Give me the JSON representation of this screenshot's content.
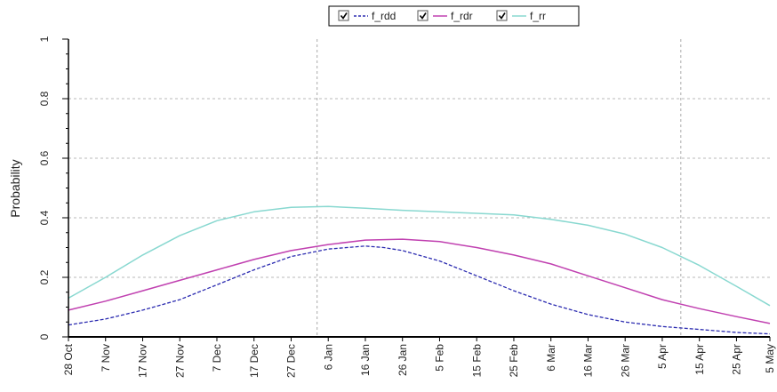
{
  "chart_data": {
    "type": "line",
    "ylabel": "Probability",
    "ylim": [
      0,
      1
    ],
    "yticks": [
      0,
      0.2,
      0.4,
      0.6,
      0.8,
      1
    ],
    "ytick_labels": [
      "0",
      "0.2",
      "0.4",
      "0.6",
      "0.8",
      "1"
    ],
    "xlim_day": [
      0,
      189
    ],
    "x_tick_days": [
      0,
      10,
      20,
      30,
      40,
      50,
      60,
      70,
      80,
      90,
      100,
      110,
      120,
      130,
      140,
      150,
      160,
      170,
      180,
      189
    ],
    "x_tick_labels": [
      "28 Oct",
      "7 Nov",
      "17 Nov",
      "27 Nov",
      "7 Dec",
      "17 Dec",
      "27 Dec",
      "6 Jan",
      "16 Jan",
      "26 Jan",
      "5 Feb",
      "15 Feb",
      "25 Feb",
      "6 Mar",
      "16 Mar",
      "26 Mar",
      "5 Apr",
      "15 Apr",
      "25 Apr",
      "5 May"
    ],
    "grid": true,
    "vlines_day": [
      67,
      165
    ],
    "legend_position": "top-center",
    "series": [
      {
        "name": "f_rdd",
        "color": "#2b2bb0",
        "dashed": true,
        "x": [
          0,
          10,
          20,
          30,
          40,
          50,
          60,
          70,
          80,
          85,
          90,
          100,
          110,
          120,
          130,
          140,
          150,
          160,
          170,
          180,
          189
        ],
        "y": [
          0.04,
          0.06,
          0.09,
          0.125,
          0.175,
          0.225,
          0.27,
          0.295,
          0.305,
          0.3,
          0.29,
          0.255,
          0.205,
          0.155,
          0.11,
          0.075,
          0.05,
          0.035,
          0.025,
          0.015,
          0.01
        ]
      },
      {
        "name": "f_rdr",
        "color": "#c040b0",
        "dashed": false,
        "x": [
          0,
          10,
          20,
          30,
          40,
          50,
          60,
          70,
          80,
          90,
          100,
          110,
          120,
          130,
          140,
          150,
          160,
          170,
          180,
          189
        ],
        "y": [
          0.09,
          0.12,
          0.155,
          0.19,
          0.225,
          0.26,
          0.29,
          0.31,
          0.325,
          0.328,
          0.32,
          0.3,
          0.275,
          0.245,
          0.205,
          0.165,
          0.125,
          0.095,
          0.068,
          0.045
        ]
      },
      {
        "name": "f_rr",
        "color": "#88d8d0",
        "dashed": false,
        "x": [
          0,
          10,
          20,
          30,
          40,
          50,
          60,
          70,
          80,
          90,
          100,
          110,
          120,
          130,
          140,
          150,
          160,
          170,
          180,
          189
        ],
        "y": [
          0.13,
          0.2,
          0.275,
          0.34,
          0.39,
          0.42,
          0.435,
          0.438,
          0.432,
          0.425,
          0.42,
          0.415,
          0.41,
          0.395,
          0.375,
          0.345,
          0.3,
          0.24,
          0.17,
          0.105
        ]
      }
    ]
  }
}
